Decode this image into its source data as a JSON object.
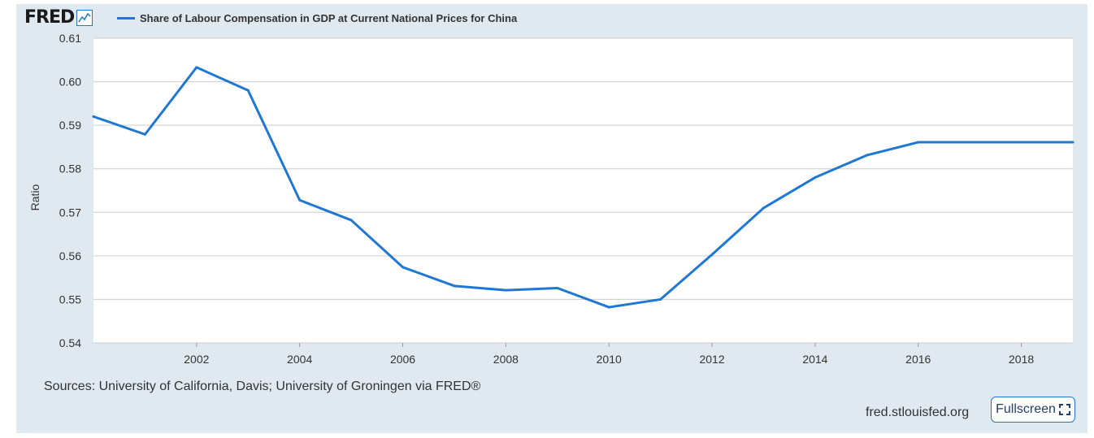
{
  "brand": {
    "logo_text": "FRED"
  },
  "legend": {
    "label": "Share of Labour Compensation in GDP at Current National Prices for China",
    "color": "#1f77d4"
  },
  "footer": {
    "sources": "Sources: University of California, Davis; University of Groningen via FRED®",
    "site": "fred.stlouisfed.org",
    "fullscreen_label": "Fullscreen"
  },
  "icons": {
    "logo_chart": "line-chart-icon",
    "fullscreen": "fullscreen-icon"
  },
  "chart_data": {
    "type": "line",
    "title": "",
    "xlabel": "",
    "ylabel": "Ratio",
    "xlim": [
      2000,
      2019
    ],
    "ylim": [
      0.54,
      0.61
    ],
    "x_ticks": [
      "2002",
      "2004",
      "2006",
      "2008",
      "2010",
      "2012",
      "2014",
      "2016",
      "2018"
    ],
    "y_ticks": [
      "0.54",
      "0.55",
      "0.56",
      "0.57",
      "0.58",
      "0.59",
      "0.60",
      "0.61"
    ],
    "grid": true,
    "series": [
      {
        "name": "Share of Labour Compensation in GDP at Current National Prices for China",
        "color": "#1f77d4",
        "x": [
          2000,
          2001,
          2002,
          2003,
          2004,
          2005,
          2006,
          2007,
          2008,
          2009,
          2010,
          2011,
          2012,
          2013,
          2014,
          2015,
          2016,
          2017,
          2018,
          2019
        ],
        "y": [
          0.592,
          0.5879,
          0.6033,
          0.598,
          0.5728,
          0.5682,
          0.5574,
          0.5531,
          0.5521,
          0.5526,
          0.5482,
          0.55,
          0.5603,
          0.571,
          0.578,
          0.5831,
          0.5861,
          0.5861,
          0.5861,
          0.5861
        ]
      }
    ]
  }
}
